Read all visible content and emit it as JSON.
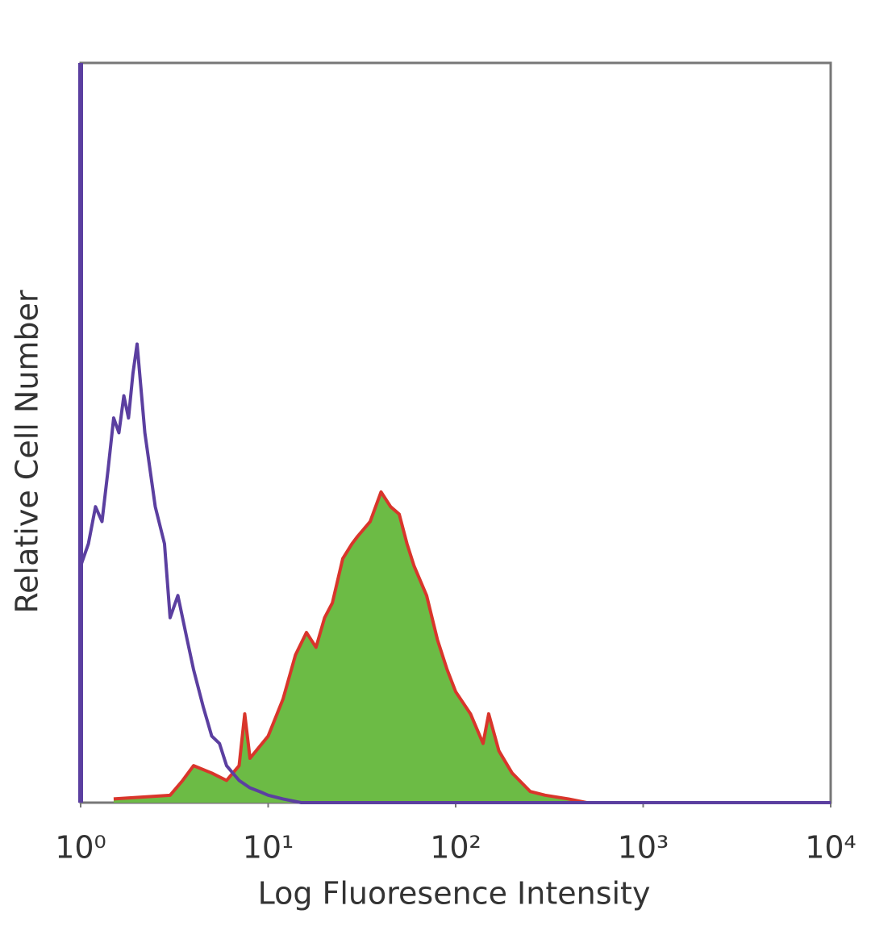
{
  "chart_data": {
    "type": "histogram-line",
    "xlabel": "Log Fluoresence Intensity",
    "ylabel": "Relative Cell Number",
    "xscale": "log",
    "xlim": [
      1,
      10000
    ],
    "ylim": [
      0,
      100
    ],
    "xticks": [
      {
        "value": 1,
        "label": "10⁰"
      },
      {
        "value": 10,
        "label": "10¹"
      },
      {
        "value": 100,
        "label": "10²"
      },
      {
        "value": 1000,
        "label": "10³"
      },
      {
        "value": 10000,
        "label": "10⁴"
      }
    ],
    "series": [
      {
        "color": "#d9352b",
        "fill": "#6cbb45",
        "x": [
          1.5,
          3,
          3.5,
          4,
          5,
          6,
          7,
          7.5,
          8,
          10,
          12,
          14,
          16,
          18,
          20,
          22,
          25,
          28,
          30,
          35,
          40,
          45,
          50,
          55,
          60,
          70,
          80,
          90,
          100,
          120,
          140,
          150,
          170,
          200,
          250,
          300,
          400,
          500,
          10000
        ],
        "values": [
          0.5,
          1,
          3,
          5,
          4,
          3,
          5,
          12,
          6,
          9,
          14,
          20,
          23,
          21,
          25,
          27,
          33,
          35,
          36,
          38,
          42,
          40,
          39,
          35,
          32,
          28,
          22,
          18,
          15,
          12,
          8,
          12,
          7,
          4,
          1.5,
          1,
          0.5,
          0,
          0
        ]
      },
      {
        "color": "#5b3fa0",
        "x": [
          1,
          1.1,
          1.2,
          1.3,
          1.4,
          1.5,
          1.6,
          1.7,
          1.8,
          1.9,
          2,
          2.2,
          2.5,
          2.8,
          3,
          3.3,
          3.7,
          4,
          4.5,
          5,
          5.5,
          6,
          7,
          8,
          9,
          10,
          12,
          15,
          10000
        ],
        "values": [
          32,
          35,
          40,
          38,
          45,
          52,
          50,
          55,
          52,
          58,
          62,
          50,
          40,
          35,
          25,
          28,
          22,
          18,
          13,
          9,
          8,
          5,
          3,
          2,
          1.5,
          1,
          0.5,
          0,
          0
        ]
      }
    ]
  }
}
